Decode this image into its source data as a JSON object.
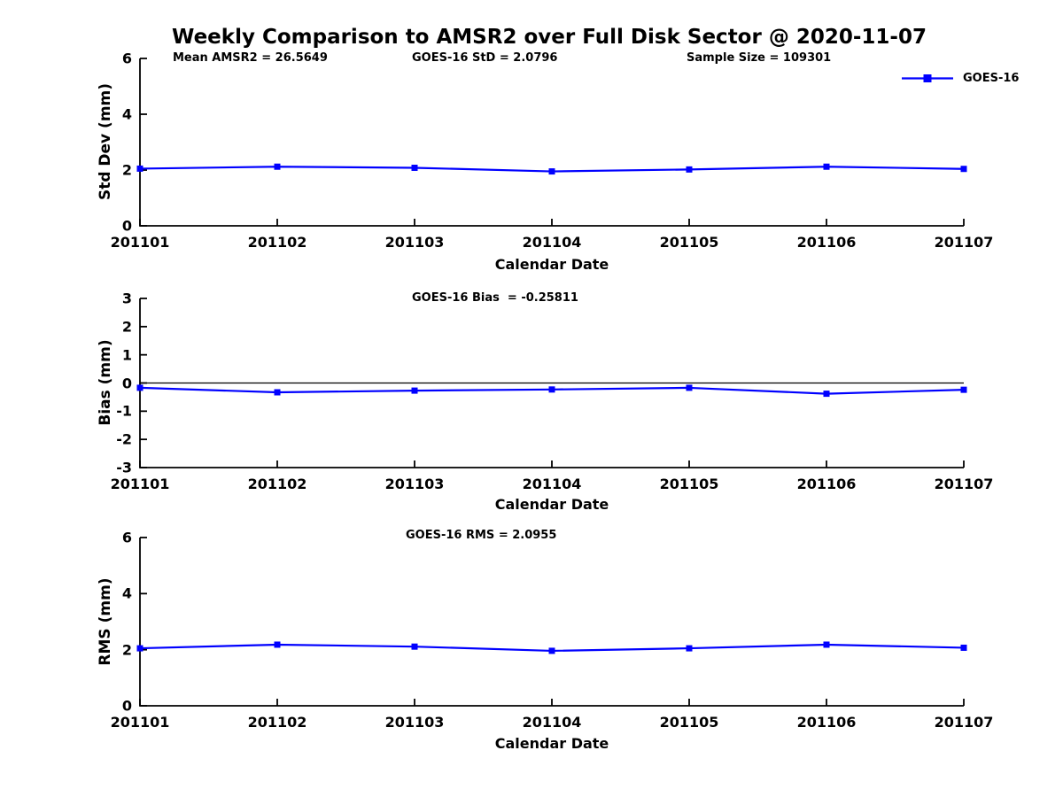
{
  "title": "Weekly Comparison to AMSR2 over Full Disk Sector @ 2020-11-07",
  "header_stats": {
    "mean_amsr2": "Mean AMSR2 = 26.5649",
    "goes16_std": "GOES-16 StD = 2.0796",
    "sample_size": "Sample Size = 109301"
  },
  "legend": {
    "label": "GOES-16"
  },
  "colors": {
    "line": "#0000ff",
    "axis": "#000000",
    "text": "#000000"
  },
  "chart_data": [
    {
      "type": "line",
      "title": "",
      "ylabel": "Std Dev (mm)",
      "xlabel": "Calendar Date",
      "ylim": [
        0,
        6
      ],
      "yticks": [
        0,
        2,
        4,
        6
      ],
      "grid": false,
      "legend_position": "top-right-outside",
      "categories": [
        "201101",
        "201102",
        "201103",
        "201104",
        "201105",
        "201106",
        "201107"
      ],
      "series": [
        {
          "name": "GOES-16",
          "values": [
            2.05,
            2.12,
            2.08,
            1.95,
            2.02,
            2.12,
            2.04
          ]
        }
      ]
    },
    {
      "type": "line",
      "title": "GOES-16 Bias  = -0.25811",
      "ylabel": "Bias (mm)",
      "xlabel": "Calendar Date",
      "ylim": [
        -3,
        3
      ],
      "yticks": [
        -3,
        -2,
        -1,
        0,
        1,
        2,
        3
      ],
      "grid": false,
      "zero_line": true,
      "categories": [
        "201101",
        "201102",
        "201103",
        "201104",
        "201105",
        "201106",
        "201107"
      ],
      "series": [
        {
          "name": "GOES-16",
          "values": [
            -0.17,
            -0.33,
            -0.27,
            -0.23,
            -0.17,
            -0.38,
            -0.24
          ]
        }
      ]
    },
    {
      "type": "line",
      "title": "GOES-16 RMS = 2.0955",
      "ylabel": "RMS (mm)",
      "xlabel": "Calendar Date",
      "ylim": [
        0,
        6
      ],
      "yticks": [
        0,
        2,
        4,
        6
      ],
      "grid": false,
      "categories": [
        "201101",
        "201102",
        "201103",
        "201104",
        "201105",
        "201106",
        "201107"
      ],
      "series": [
        {
          "name": "GOES-16",
          "values": [
            2.05,
            2.18,
            2.11,
            1.96,
            2.05,
            2.18,
            2.07
          ]
        }
      ]
    }
  ]
}
